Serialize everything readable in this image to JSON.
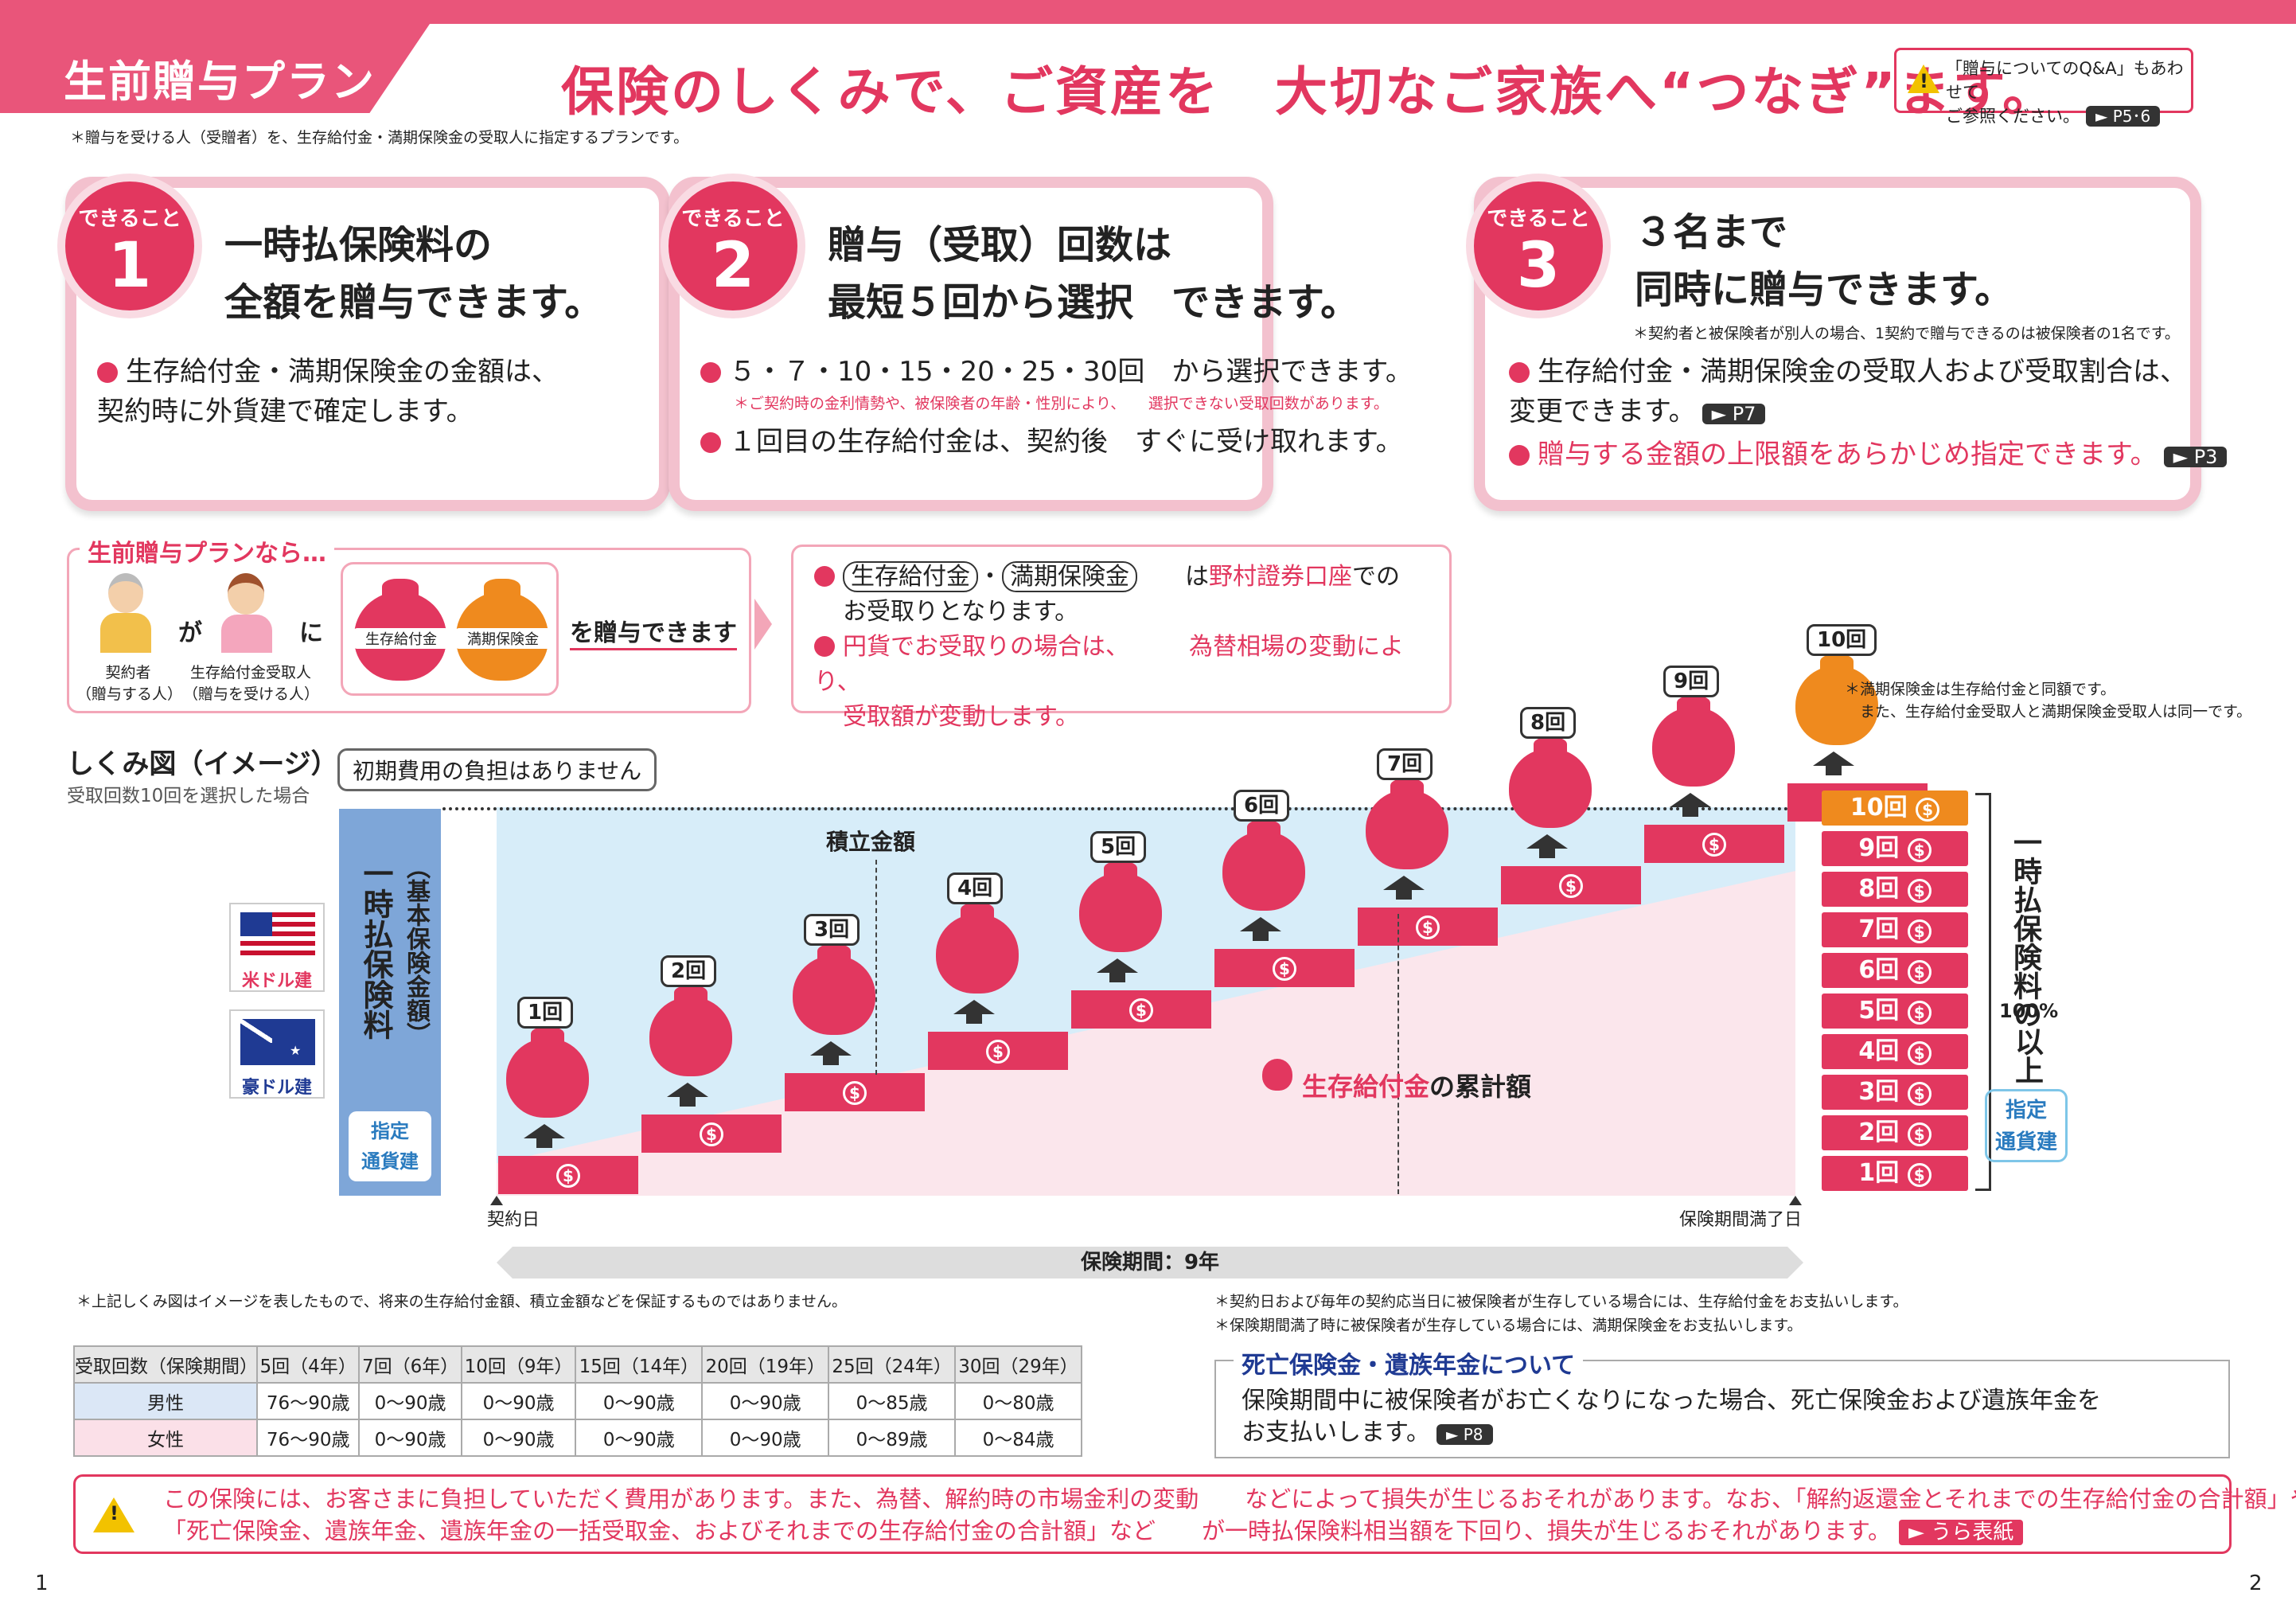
{
  "header": {
    "tab_label": "生前贈与プラン",
    "headline": "保険のしくみで、ご資産を　大切なご家族へ“つなぎ”ます。",
    "note_line1": "「贈与についてのQ&A」もあわせて",
    "note_line2": "ご参照ください。",
    "note_ref": "► P5･6",
    "subnote": "＊贈与を受ける人（受贈者）を、生存給付金・満期保険金の受取人に指定するプランです。"
  },
  "cards": [
    {
      "badge": "できること",
      "num": "1",
      "title": "一時払保険料の\n全額を贈与できます。",
      "bullets": [
        "生存給付金・満期保険金の金額は、\n契約時に外貨建で確定します。"
      ]
    },
    {
      "badge": "できること",
      "num": "2",
      "title": "贈与（受取）回数は\n最短５回から選択　できます。",
      "b1": "５・７・10・15・20・25・30回　から選択できます。",
      "b1note": "＊ご契約時の金利情勢や、被保険者の年齢・性別により、　　選択できない受取回数があります。",
      "b2": "１回目の生存給付金は、契約後　すぐに受け取れます。"
    },
    {
      "badge": "できること",
      "num": "3",
      "title": "３名まで\n同時に贈与できます。",
      "note": "＊契約者と被保険者が別人の場合、1契約で贈与できるのは被保険者の1名です。",
      "b1": "生存給付金・満期保険金の受取人および受取割合は、\n変更できます。",
      "b1ref": "► P7",
      "b2": "贈与する金額の上限額をあらかじめ指定できます。",
      "b2ref": "► P3"
    }
  ],
  "plan": {
    "title": "生前贈与プランなら…",
    "ga": "が",
    "ni": "に",
    "person1": "契約者\n（贈与する人）",
    "person2": "生存給付金受取人\n（贈与を受ける人）",
    "bag1": "生存給付金",
    "bag2": "満期保険金",
    "gift": "を贈与できます",
    "r1a": "生存給付金",
    "r1b": "満期保険金",
    "r1c": "は",
    "r1d": "野村證券口座",
    "r1e": "での",
    "r2": "お受取りとなります。",
    "r3": "円貨でお受取りの場合は、",
    "r3b": "為替相場の変動により、",
    "r4": "受取額が変動します。"
  },
  "diagram": {
    "title": "しくみ図（イメージ）",
    "subtitle": "受取回数10回を選択した場合",
    "callout": "初期費用の負担はありません",
    "left_label": "一時払保険料",
    "left_paren": "（基本保険金額）",
    "currency_tag": "指定\n通貨建",
    "usd": "米ドル建",
    "aud": "豪ドル建",
    "accum": "積立金額",
    "cumulative_bag": "生存給付金",
    "cumulative": "の累計額",
    "start": "契約日",
    "end": "保険期間満了日",
    "period": "保険期間：9年",
    "right_label": "一時払保険料の",
    "right_pct": "100%",
    "right_ijo": "以上",
    "note": "＊満期保険金は生存給付金と同額です。\n　また、生存給付金受取人と満期保険金受取人は同一です。",
    "times": [
      "1回",
      "2回",
      "3回",
      "4回",
      "5回",
      "6回",
      "7回",
      "8回",
      "9回",
      "10回"
    ],
    "dollar": "$"
  },
  "notes": {
    "left": "＊上記しくみ図はイメージを表したもので、将来の生存給付金額、積立金額などを保証するものではありません。",
    "right1": "＊契約日および毎年の契約応当日に被保険者が生存している場合には、生存給付金をお支払いします。",
    "right2": "＊保険期間満了時に被保険者が生存している場合には、満期保険金をお支払いします。"
  },
  "age_table": {
    "headers": [
      "受取回数（保険期間）",
      "5回（4年）",
      "7回（6年）",
      "10回（9年）",
      "15回（14年）",
      "20回（19年）",
      "25回（24年）",
      "30回（29年）"
    ],
    "rows": [
      [
        "男性",
        "76〜90歳",
        "0〜90歳",
        "0〜90歳",
        "0〜90歳",
        "0〜90歳",
        "0〜85歳",
        "0〜80歳"
      ],
      [
        "女性",
        "76〜90歳",
        "0〜90歳",
        "0〜90歳",
        "0〜90歳",
        "0〜90歳",
        "0〜89歳",
        "0〜84歳"
      ]
    ]
  },
  "death": {
    "title": "死亡保険金・遺族年金について",
    "line1": "保険期間中に被保険者がお亡くなりになった場合、死亡保険金および遺族年金を",
    "line2": "お支払いします。",
    "ref": "► P8"
  },
  "warning": {
    "l1": "この保険には、お客さまに負担していただく費用があります。また、為替、解約時の市場金利の変動　　などによって損失が生じるおそれがあります。なお、「解約返還金とそれまでの生存給付金の合計額」や",
    "l2": "「死亡保険金、遺族年金、遺族年金の一括受取金、およびそれまでの生存給付金の合計額」など　　が一時払保険料相当額を下回り、損失が生じるおそれがあります。",
    "ref": "► うら表紙"
  },
  "pages": {
    "left": "1",
    "right": "2"
  },
  "colors": {
    "accent": "#e2375f",
    "orange": "#ef8a1e",
    "blue": "#7ea6d8",
    "sky": "#d7edf9",
    "lightpink": "#fbe6ec"
  }
}
